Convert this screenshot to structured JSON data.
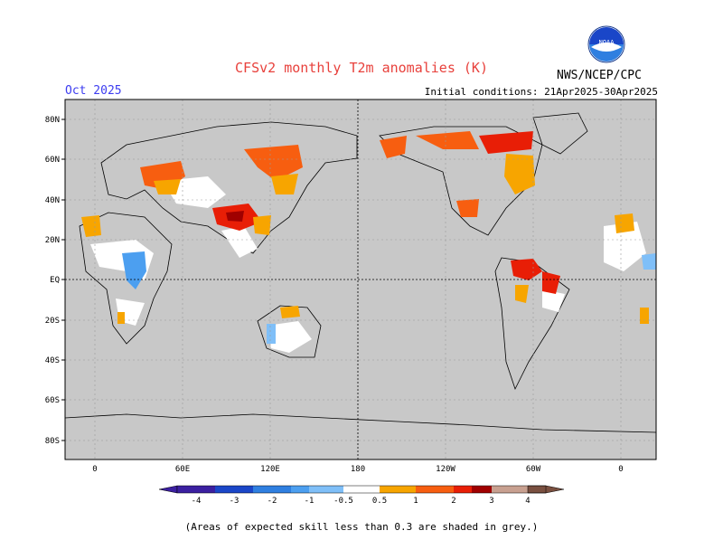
{
  "header": {
    "title": "CFSv2 monthly T2m anomalies (K)",
    "month": "Oct 2025",
    "agency": "NWS/NCEP/CPC",
    "initial_conditions": "Initial conditions: 21Apr2025-30Apr2025",
    "logo_text": "NOAA"
  },
  "map": {
    "lat_labels": [
      "80N",
      "60N",
      "40N",
      "20N",
      "EQ",
      "20S",
      "40S",
      "60S",
      "80S"
    ],
    "lon_labels": [
      "0",
      "60E",
      "120E",
      "180",
      "120W",
      "60W",
      "0"
    ],
    "grid_color": "#999999",
    "no_skill_color": "#c8c8c8",
    "ocean_color": "#c8c8c8"
  },
  "colorbar": {
    "labels": [
      "-4",
      "-3",
      "-2",
      "-1",
      "-0.5",
      "0.5",
      "1",
      "2",
      "3",
      "4"
    ],
    "colors": [
      "#3b1fa0",
      "#1a46c8",
      "#2f7fe0",
      "#4c9ff0",
      "#7fbff8",
      "#ffffff",
      "#f7a500",
      "#f75e10",
      "#e81e06",
      "#a00000",
      "#c8a090",
      "#7a5040"
    ]
  },
  "footnote": "(Areas of expected skill less than 0.3 are shaded in grey.)"
}
